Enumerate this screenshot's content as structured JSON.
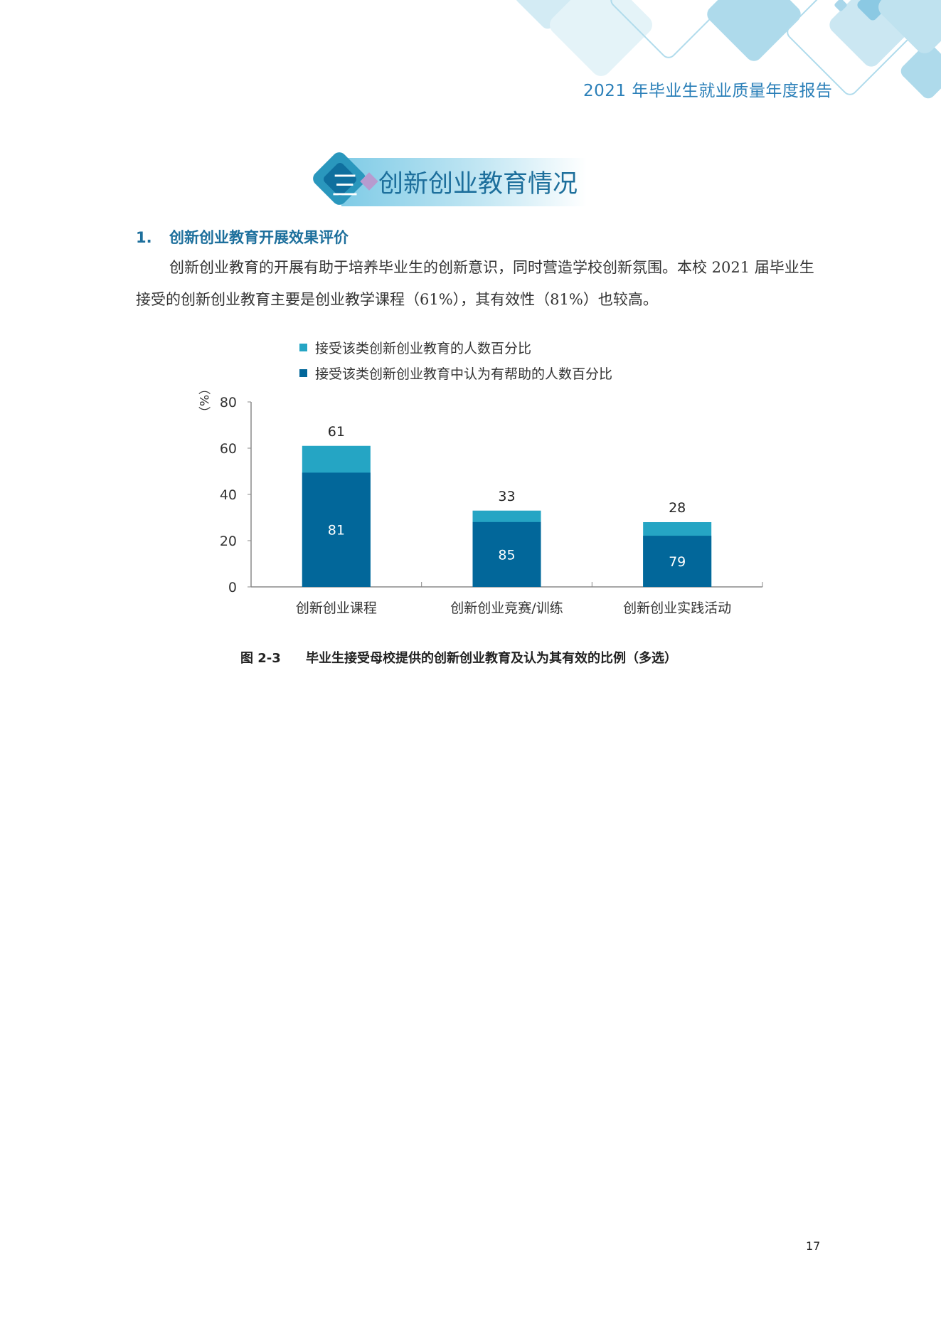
{
  "header": {
    "title": "2021 年毕业生就业质量年度报告"
  },
  "section": {
    "number": "三",
    "title": "创新创业教育情况"
  },
  "subsection": {
    "number": "1.",
    "title": "创新创业教育开展效果评价"
  },
  "paragraph": "创新创业教育的开展有助于培养毕业生的创新意识，同时营造学校创新氛围。本校 2021 届毕业生接受的创新创业教育主要是创业教学课程（61%），其有效性（81%）也较高。",
  "chart_data": {
    "type": "bar",
    "stacked_overlay": true,
    "categories": [
      "创新创业课程",
      "创新创业竞赛/训练",
      "创新创业实践活动"
    ],
    "series": [
      {
        "name": "接受该类创新创业教育的人数百分比",
        "values": [
          61,
          33,
          28
        ],
        "color": "#25a5c4"
      },
      {
        "name": "接受该类创新创业教育中认为有帮助的人数百分比",
        "values": [
          81,
          85,
          79
        ],
        "color": "#02679a"
      }
    ],
    "ylabel": "（%）",
    "ylim": [
      0,
      80
    ],
    "yticks": [
      0,
      20,
      40,
      60,
      80
    ],
    "grid": false,
    "legend_position": "top"
  },
  "caption": {
    "figure": "图 2-3",
    "text": "毕业生接受母校提供的创新创业教育及认为其有效的比例（多选）"
  },
  "page_number": "17"
}
